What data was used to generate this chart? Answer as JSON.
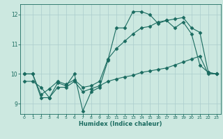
{
  "xlabel": "Humidex (Indice chaleur)",
  "background_color": "#cce8e0",
  "grid_color": "#aacccc",
  "line_color": "#1a6b60",
  "xlim": [
    -0.5,
    23.5
  ],
  "ylim": [
    8.65,
    12.35
  ],
  "xticks": [
    0,
    1,
    2,
    3,
    4,
    5,
    6,
    7,
    8,
    9,
    10,
    11,
    12,
    13,
    14,
    15,
    16,
    17,
    18,
    19,
    20,
    21,
    22,
    23
  ],
  "yticks": [
    9,
    10,
    11,
    12
  ],
  "line1_x": [
    0,
    1,
    2,
    3,
    4,
    5,
    6,
    7,
    8,
    9,
    10,
    11,
    12,
    13,
    14,
    15,
    16,
    17,
    18,
    19,
    20,
    21,
    22,
    23
  ],
  "line1_y": [
    10.0,
    10.0,
    9.2,
    9.2,
    9.7,
    9.6,
    10.0,
    8.75,
    9.4,
    9.55,
    10.45,
    11.55,
    11.55,
    12.1,
    12.1,
    12.0,
    11.7,
    11.8,
    11.55,
    11.75,
    11.35,
    10.3,
    10.05,
    10.0
  ],
  "line2_x": [
    0,
    1,
    2,
    3,
    4,
    5,
    6,
    7,
    8,
    9,
    10,
    11,
    12,
    13,
    14,
    15,
    16,
    17,
    18,
    19,
    20,
    21,
    22,
    23
  ],
  "line2_y": [
    10.0,
    10.0,
    9.3,
    9.5,
    9.75,
    9.65,
    9.8,
    9.55,
    9.6,
    9.75,
    10.5,
    10.85,
    11.1,
    11.35,
    11.55,
    11.6,
    11.75,
    11.8,
    11.85,
    11.9,
    11.55,
    11.4,
    10.05,
    10.0
  ],
  "line3_x": [
    0,
    1,
    2,
    3,
    4,
    5,
    6,
    7,
    8,
    9,
    10,
    11,
    12,
    13,
    14,
    15,
    16,
    17,
    18,
    19,
    20,
    21,
    22,
    23
  ],
  "line3_y": [
    9.75,
    9.75,
    9.55,
    9.2,
    9.55,
    9.55,
    9.75,
    9.4,
    9.5,
    9.6,
    9.75,
    9.83,
    9.9,
    9.95,
    10.05,
    10.1,
    10.15,
    10.2,
    10.3,
    10.4,
    10.5,
    10.6,
    10.0,
    10.0
  ]
}
